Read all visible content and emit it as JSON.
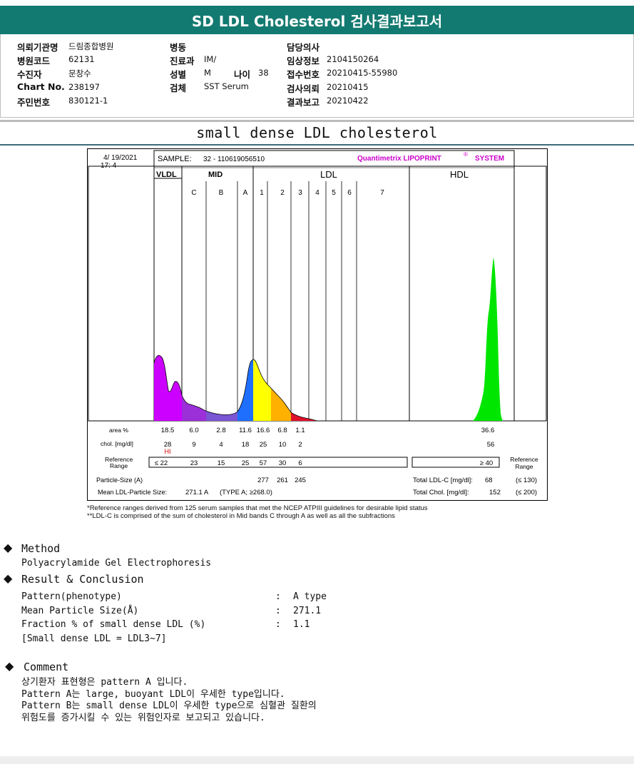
{
  "header": {
    "title": "SD LDL Cholesterol 검사결과보고서"
  },
  "info": {
    "col1": [
      {
        "label": "의뢰기관명",
        "value": "드림종합병원"
      },
      {
        "label": "병원코드",
        "value": "62131"
      },
      {
        "label": "수진자",
        "value": "문창수"
      },
      {
        "label": "Chart No.",
        "value": "238197"
      },
      {
        "label": "주민번호",
        "value": "830121-1"
      }
    ],
    "col2": [
      {
        "label": "병동",
        "value": ""
      },
      {
        "label": "진료과",
        "value": "IM/"
      },
      {
        "label": "성별",
        "value": "M"
      },
      {
        "label": "검체",
        "value": "SST Serum"
      }
    ],
    "age": {
      "label": "나이",
      "value": "38"
    },
    "col3": [
      {
        "label": "담당의사",
        "value": ""
      },
      {
        "label": "임상정보",
        "value": "2104150264"
      },
      {
        "label": "접수번호",
        "value": "20210415-55980"
      },
      {
        "label": "검사의뢰",
        "value": "20210415"
      },
      {
        "label": "결과보고",
        "value": "20210422"
      }
    ]
  },
  "section_title": "small dense LDL cholesterol",
  "report": {
    "date": "4/ 19/2021",
    "time": "17:  4",
    "sample_label": "SAMPLE:",
    "sample_value": "32 - 110619056510",
    "brand": "Quantimetrix LIPOPRINT",
    "brand_suffix": "SYSTEM",
    "brand_mark": "®",
    "band_groups": [
      "VLDL",
      "MID",
      "LDL",
      "HDL"
    ],
    "bands": [
      "C",
      "B",
      "A",
      "1",
      "2",
      "3",
      "4",
      "5",
      "6",
      "7"
    ],
    "row_labels": {
      "area": "area %",
      "chol": "chol. [mg/dl]",
      "ref1": "Reference",
      "ref2": "Range",
      "psize": "Particle-Size (A)",
      "mean": "Mean LDL-Particle Size:"
    },
    "area_values": [
      "18.5",
      "6.0",
      "2.8",
      "11.6",
      "16.6",
      "6.8",
      "1.1"
    ],
    "area_hdl": "36.6",
    "chol_values": [
      "28",
      "9",
      "4",
      "18",
      "25",
      "10",
      "2"
    ],
    "chol_hdl": "56",
    "hi_flag": "HI",
    "ref_values": [
      "≤ 22",
      "23",
      "15",
      "25",
      "57",
      "30",
      "6"
    ],
    "ref_hdl": "≥  40",
    "ref_right1": "Reference",
    "ref_right2": "Range",
    "psize_values": [
      "277",
      "261",
      "245"
    ],
    "mean_value": "271.1 A",
    "mean_type": "(TYPE A; ≥268.0)",
    "total_ldl_label": "Total LDL-C [mg/dl]:",
    "total_ldl_value": "68",
    "total_ldl_ref": "(≤ 130)",
    "total_chol_label": "Total Chol. [mg/dl]:",
    "total_chol_value": "152",
    "total_chol_ref": "(≤ 200)",
    "colors": {
      "vldl": "#cc00ff",
      "mid": "#8a33cc",
      "mida": "#1f6fff",
      "ldl1": "#ffff00",
      "ldl2": "#ffb000",
      "ldl3": "#e0102a",
      "hdl": "#00e600"
    }
  },
  "notes": [
    "*Reference ranges derived from 125 serum samples that met the NCEP ATPIII guidelines for desirable lipid status",
    "**LDL-C is comprised of the sum of cholesterol in Mid bands C through A as well as all the subfractions"
  ],
  "method": {
    "heading": "Method",
    "text": "Polyacrylamide Gel Electrophoresis"
  },
  "result": {
    "heading": "Result & Conclusion",
    "rows": [
      {
        "label": "Pattern(phenotype)",
        "sep": ":",
        "value": "A type"
      },
      {
        "label": "Mean Particle Size(Å)",
        "sep": ":",
        "value": "271.1"
      },
      {
        "label": "Fraction % of small dense LDL (%)",
        "sep": ":",
        "value": "1.1"
      }
    ],
    "note": "[Small dense LDL = LDL3~7]"
  },
  "comment": {
    "heading": "Comment",
    "lines": [
      "상기환자 표현형은 pattern A 입니다.",
      "Pattern A는 large, buoyant LDL이 우세한 type입니다.",
      "Pattern B는 small dense LDL이 우세한 type으로 심혈관 질환의",
      "위험도를 증가시킬 수 있는 위험인자로 보고되고 있습니다."
    ]
  },
  "bullet_icon": "diamond-icon"
}
